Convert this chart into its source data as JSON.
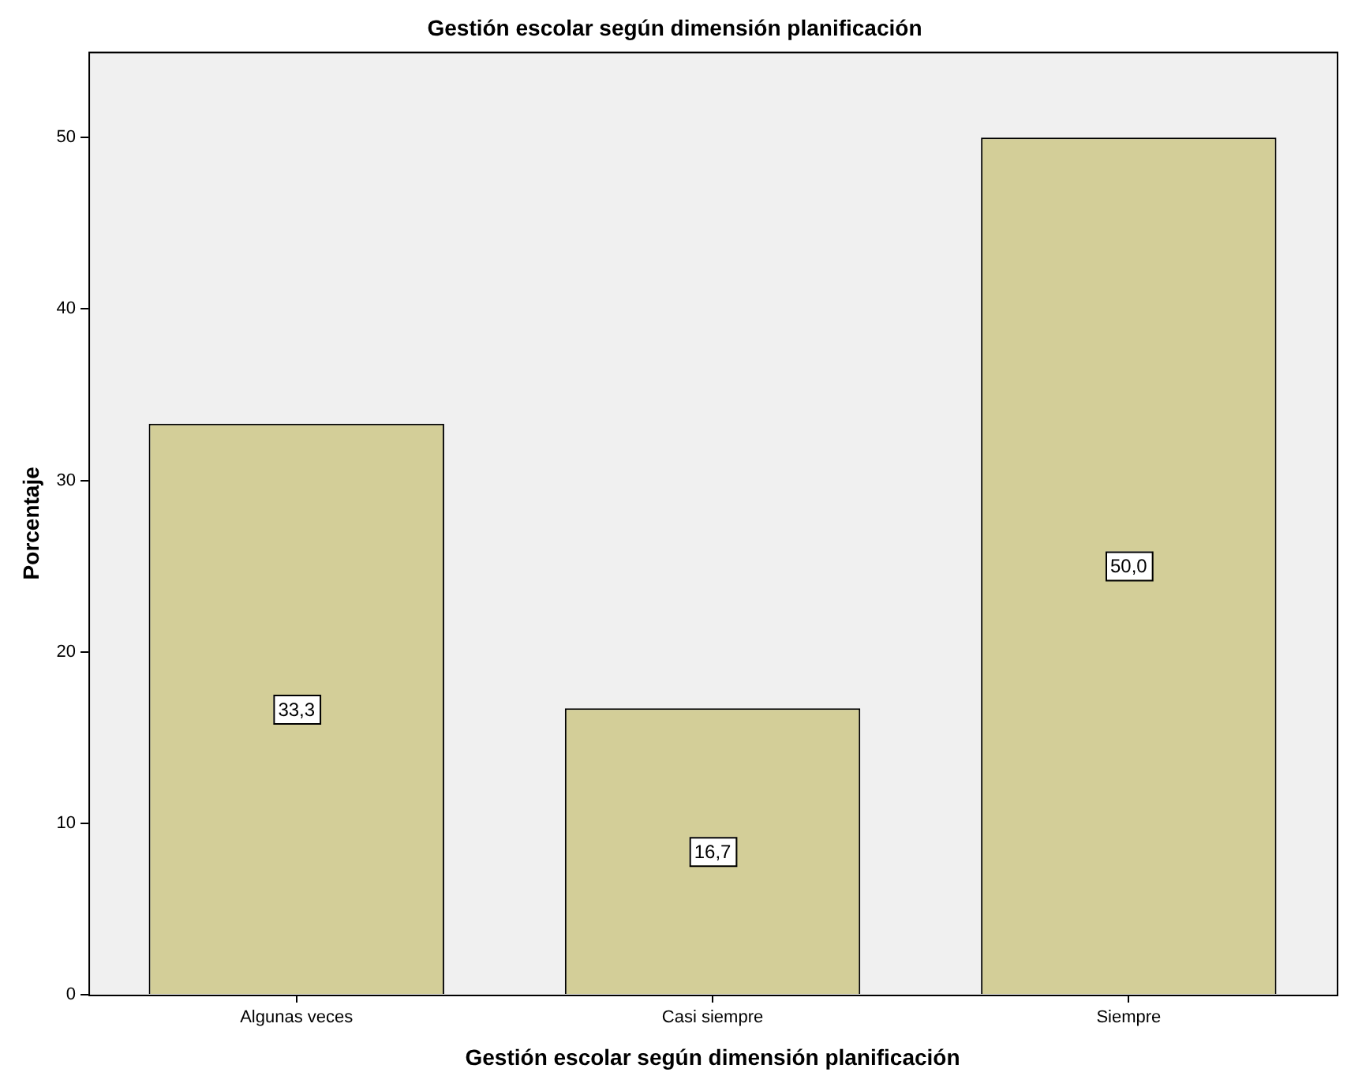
{
  "chart_data": {
    "type": "bar",
    "title": "Gestión escolar según dimensión planificación",
    "xlabel": "Gestión escolar según dimensión planificación",
    "ylabel": "Porcentaje",
    "categories": [
      "Algunas veces",
      "Casi siempre",
      "Siempre"
    ],
    "values": [
      33.3,
      16.7,
      50.0
    ],
    "value_labels": [
      "33,3",
      "16,7",
      "50,0"
    ],
    "color": "#d3ce98",
    "ylim": [
      0,
      55
    ],
    "yticks": [
      0,
      10,
      20,
      30,
      40,
      50
    ],
    "grid": false,
    "legend": false
  }
}
